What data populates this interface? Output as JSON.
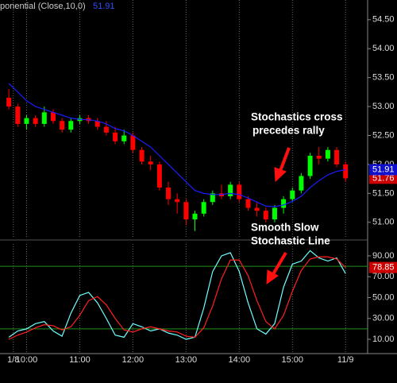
{
  "chart_data": [
    {
      "type": "candlestick",
      "title": "ponential (Close,10,0)",
      "x": [
        580,
        590,
        600,
        610,
        620,
        630,
        640,
        650,
        660,
        670,
        680,
        690,
        700,
        710,
        720,
        730,
        740,
        750,
        760,
        770,
        780,
        790,
        800,
        810,
        820,
        830,
        840,
        850,
        860,
        870,
        880,
        890,
        900,
        910,
        920,
        930,
        940,
        950,
        960
      ],
      "open": [
        53.15,
        53.0,
        52.7,
        52.8,
        52.7,
        52.9,
        52.75,
        52.6,
        52.75,
        52.8,
        52.75,
        52.65,
        52.55,
        52.4,
        52.5,
        52.25,
        52.05,
        52.0,
        51.6,
        51.4,
        51.35,
        51.05,
        51.15,
        51.35,
        51.5,
        51.45,
        51.65,
        51.4,
        51.25,
        51.2,
        51.05,
        51.25,
        51.4,
        51.55,
        51.8,
        52.15,
        52.1,
        52.25,
        52.0
      ],
      "high": [
        53.3,
        53.05,
        52.85,
        52.85,
        53.0,
        52.95,
        52.8,
        52.8,
        52.85,
        52.85,
        52.8,
        52.75,
        52.65,
        52.6,
        52.55,
        52.3,
        52.15,
        52.05,
        51.7,
        51.5,
        51.4,
        51.2,
        51.4,
        51.55,
        51.65,
        51.7,
        51.7,
        51.45,
        51.35,
        51.25,
        51.3,
        51.45,
        51.6,
        51.85,
        52.2,
        52.3,
        52.3,
        52.3,
        52.05
      ],
      "low": [
        52.95,
        52.65,
        52.6,
        52.65,
        52.65,
        52.7,
        52.55,
        52.55,
        52.7,
        52.7,
        52.6,
        52.5,
        52.35,
        52.35,
        52.2,
        52.0,
        51.9,
        51.55,
        51.3,
        51.15,
        50.95,
        50.85,
        51.1,
        51.3,
        51.4,
        51.4,
        51.35,
        51.2,
        51.1,
        51.0,
        51.0,
        51.15,
        51.35,
        51.5,
        51.75,
        52.0,
        52.05,
        51.95,
        51.7
      ],
      "close": [
        53.0,
        52.7,
        52.8,
        52.7,
        52.9,
        52.75,
        52.6,
        52.75,
        52.8,
        52.75,
        52.65,
        52.55,
        52.4,
        52.5,
        52.25,
        52.05,
        52.0,
        51.6,
        51.4,
        51.35,
        51.05,
        51.15,
        51.35,
        51.5,
        51.45,
        51.65,
        51.4,
        51.25,
        51.2,
        51.05,
        51.25,
        51.4,
        51.55,
        51.8,
        52.15,
        52.1,
        52.25,
        52.0,
        51.76
      ],
      "up_color": "#00ff00",
      "down_color": "#ff0000",
      "overlay": {
        "color": "#1c1cff",
        "values": [
          53.4,
          53.25,
          53.1,
          53.0,
          52.95,
          52.9,
          52.85,
          52.8,
          52.78,
          52.77,
          52.75,
          52.7,
          52.62,
          52.58,
          52.5,
          52.4,
          52.3,
          52.15,
          52.0,
          51.85,
          51.7,
          51.55,
          51.5,
          51.48,
          51.48,
          51.5,
          51.48,
          51.42,
          51.35,
          51.28,
          51.27,
          51.3,
          51.36,
          51.45,
          51.6,
          51.72,
          51.82,
          51.88,
          51.91
        ]
      },
      "xlim": [
        570,
        984
      ],
      "ylim": [
        50.75,
        54.84
      ],
      "yticks": [
        {
          "value": 51,
          "label": "51.00"
        },
        {
          "value": 51.5,
          "label": "51.50"
        },
        {
          "value": 52,
          "label": "52.00"
        },
        {
          "value": 52.5,
          "label": "52.50"
        },
        {
          "value": 53,
          "label": "53.00"
        },
        {
          "value": 53.5,
          "label": "53.50"
        },
        {
          "value": 54,
          "label": "54.00"
        },
        {
          "value": 54.5,
          "label": "54.50"
        }
      ],
      "annotations": [
        "Stochastics cross",
        "precedes rally",
        "Smooth Slow",
        "Stochastic Line"
      ]
    },
    {
      "type": "line",
      "x": [
        580,
        590,
        600,
        610,
        620,
        630,
        640,
        650,
        660,
        670,
        680,
        690,
        700,
        710,
        720,
        730,
        740,
        750,
        760,
        770,
        780,
        790,
        800,
        810,
        820,
        830,
        840,
        850,
        860,
        870,
        880,
        890,
        900,
        910,
        920,
        930,
        940,
        950,
        960
      ],
      "series": [
        {
          "color": "#70ffff",
          "values": [
            12,
            18,
            20,
            25,
            27,
            18,
            13,
            35,
            52,
            55,
            45,
            30,
            14,
            12,
            25,
            22,
            18,
            20,
            16,
            14,
            10,
            12,
            40,
            75,
            90,
            93,
            75,
            45,
            20,
            15,
            25,
            60,
            82,
            85,
            95,
            88,
            85,
            88,
            73
          ]
        },
        {
          "color": "#ff2020",
          "values": [
            10,
            14,
            17,
            21,
            24,
            23,
            19,
            22,
            33,
            47,
            51,
            43,
            30,
            19,
            17,
            20,
            22,
            20,
            18,
            17,
            13,
            12,
            21,
            42,
            68,
            86,
            86,
            71,
            47,
            27,
            20,
            33,
            56,
            76,
            87,
            89,
            89,
            87,
            78.85
          ]
        }
      ],
      "reference_lines": [
        20,
        80
      ],
      "reference_color": "#1f8f1f",
      "xlim": [
        570,
        984
      ],
      "ylim": [
        -3.7,
        101.4
      ],
      "xticks": [
        {
          "value": 585,
          "label": "1/8"
        },
        {
          "value": 600,
          "label": "10:00"
        },
        {
          "value": 660,
          "label": "11:00"
        },
        {
          "value": 720,
          "label": "12:00"
        },
        {
          "value": 780,
          "label": "13:00"
        },
        {
          "value": 840,
          "label": "14:00"
        },
        {
          "value": 900,
          "label": "15:00"
        },
        {
          "value": 960,
          "label": "11/9"
        }
      ],
      "yticks": [
        {
          "value": 10,
          "label": "10.00"
        },
        {
          "value": 30,
          "label": "30.00"
        },
        {
          "value": 50,
          "label": "50.00"
        },
        {
          "value": 70,
          "label": "70.00"
        },
        {
          "value": 90,
          "label": "90.00"
        }
      ]
    }
  ]
}
